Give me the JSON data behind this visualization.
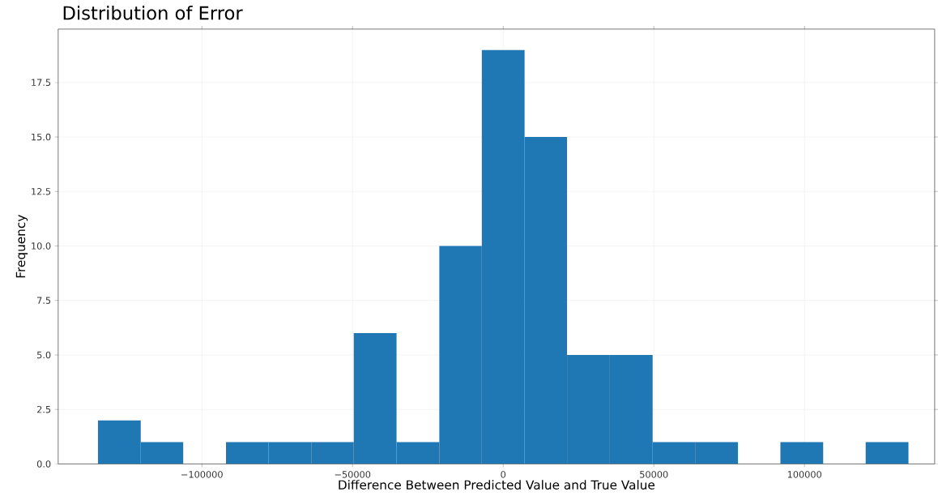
{
  "chart_data": {
    "type": "histogram",
    "title": "Distribution of Error",
    "xlabel": "Difference Between Predicted Value and True Value",
    "ylabel": "Frequency",
    "bins": [
      -134500,
      -120300,
      -106200,
      -92000,
      -77900,
      -63700,
      -49600,
      -35400,
      -21200,
      -7100,
      7100,
      21200,
      35400,
      49600,
      63700,
      77900,
      92000,
      106200,
      120300,
      134500
    ],
    "values": [
      2,
      1,
      0,
      1,
      1,
      1,
      6,
      1,
      10,
      19,
      15,
      5,
      5,
      1,
      1,
      0,
      1,
      0,
      1
    ],
    "color": "#1f77b4",
    "xlim": [
      -147700,
      143200
    ],
    "ylim": [
      0,
      19.95
    ],
    "xticks": [
      {
        "value": -100000,
        "label": "−100000"
      },
      {
        "value": -50000,
        "label": "−50000"
      },
      0,
      50000,
      100000
    ],
    "yticks": [
      {
        "value": 0,
        "label": "0.0"
      },
      {
        "value": 2.5,
        "label": "2.5"
      },
      {
        "value": 5,
        "label": "5.0"
      },
      {
        "value": 7.5,
        "label": "7.5"
      },
      {
        "value": 10,
        "label": "10.0"
      },
      {
        "value": 12.5,
        "label": "12.5"
      },
      {
        "value": 15,
        "label": "15.0"
      },
      {
        "value": 17.5,
        "label": "17.5"
      }
    ],
    "grid": true
  }
}
